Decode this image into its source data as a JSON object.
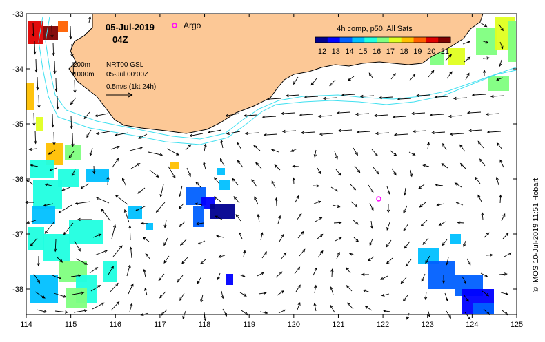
{
  "map": {
    "date": "05-Jul-2019",
    "time": "04Z",
    "argo_label": "Argo",
    "colorbar": {
      "title": "4h comp, p50, All Sats",
      "tick_labels": [
        "12",
        "13",
        "14",
        "15",
        "16",
        "17",
        "18",
        "19",
        "20",
        "21"
      ],
      "colors": [
        "#00008f",
        "#0000ff",
        "#0060ff",
        "#00c0ff",
        "#20ffe0",
        "#80ff80",
        "#e0ff20",
        "#ffc000",
        "#ff6000",
        "#e00000",
        "#800000"
      ]
    },
    "legend_text": {
      "contour_200": "200m",
      "contour_1000": "1000m",
      "altimetry": "NRT00 GSL",
      "field_time": "05-Jul 00:00Z",
      "scale": "0.5m/s (1kt 24h)"
    },
    "credit": "© IMOS 10-Jul-2019 11:51 Hobart",
    "x_ticks": [
      "114",
      "115",
      "116",
      "117",
      "118",
      "119",
      "120",
      "121",
      "122",
      "123",
      "124",
      "125"
    ],
    "y_ticks": [
      "-33",
      "-34",
      "-35",
      "-36",
      "-37",
      "-38"
    ],
    "colors": {
      "land": "#fcc896",
      "bathymetry": "#40e0f0",
      "argo": "#ff00ff",
      "arrow": "#000000"
    }
  }
}
